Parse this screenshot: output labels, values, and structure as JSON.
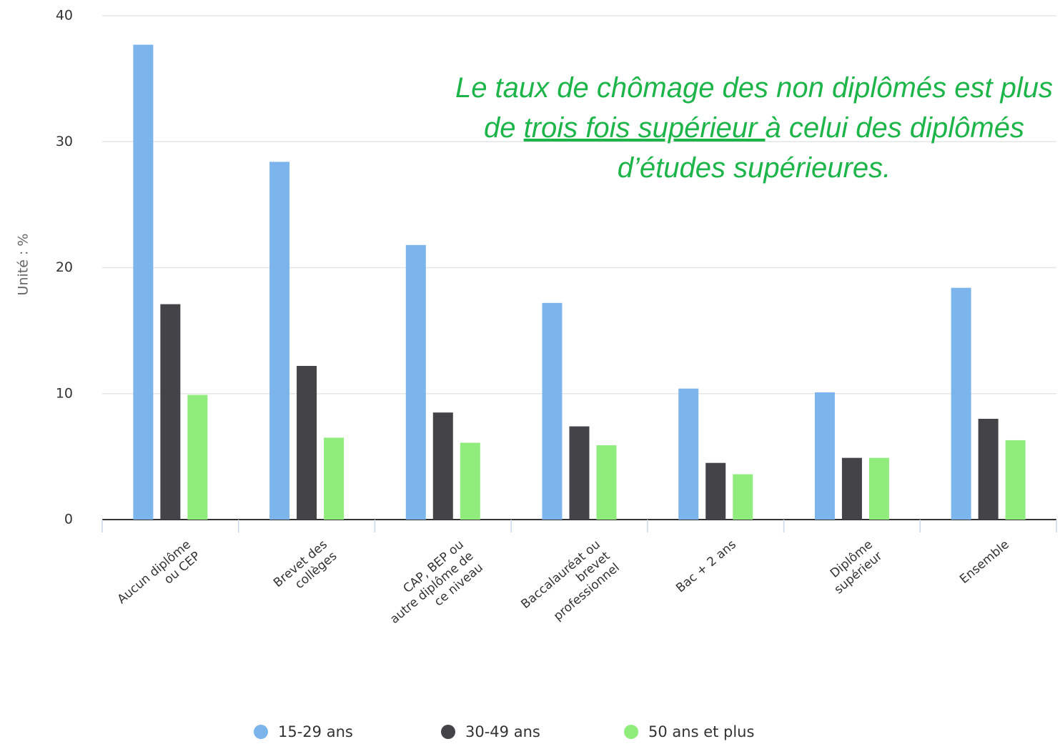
{
  "chart_data": {
    "type": "bar",
    "annotation": [
      "Le taux de chômage des non diplômés est plus de ",
      "trois fois supérieur ",
      "à celui des diplômés d’études supérieures."
    ],
    "ylabel": "Unité : %",
    "categories": [
      "Aucun diplôme ou CEP",
      "Brevet des collèges",
      "CAP, BEP ou autre diplôme de ce niveau",
      "Baccalauréat ou brevet professionnel",
      "Bac + 2 ans",
      "Diplôme supérieur",
      "Ensemble"
    ],
    "series": [
      {
        "name": "15-29 ans",
        "color": "#7cb5ec",
        "values": [
          37.7,
          28.4,
          21.8,
          17.2,
          10.4,
          10.1,
          18.4
        ]
      },
      {
        "name": "30-49 ans",
        "color": "#434348",
        "values": [
          17.1,
          12.2,
          8.5,
          7.4,
          4.5,
          4.9,
          8.0
        ]
      },
      {
        "name": "50 ans et plus",
        "color": "#90ed7d",
        "values": [
          9.9,
          6.5,
          6.1,
          5.9,
          3.6,
          4.9,
          6.3
        ]
      }
    ],
    "ylim": [
      0,
      40
    ],
    "yticks": [
      0,
      10,
      20,
      30,
      40
    ],
    "grid": true
  }
}
